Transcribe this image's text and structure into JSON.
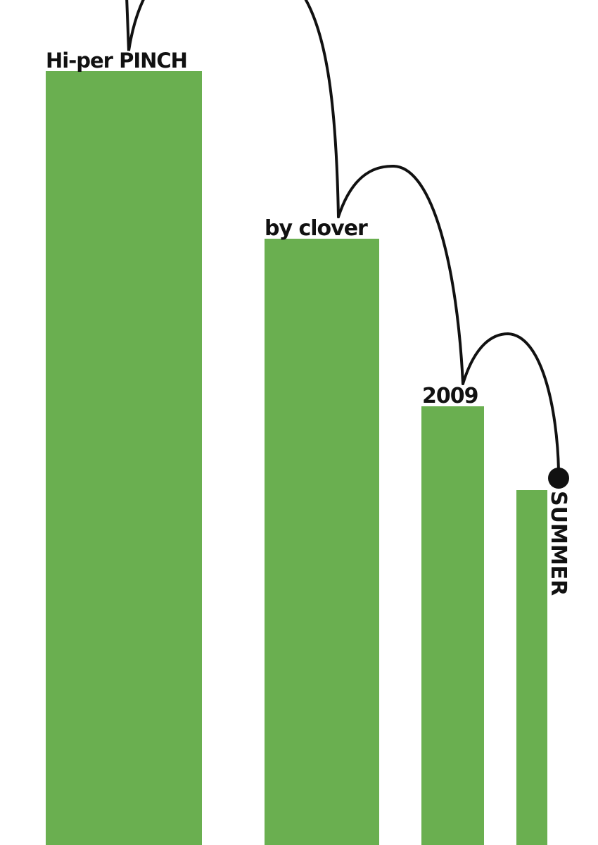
{
  "colors": {
    "bar": "#6aaf50",
    "line": "#111111",
    "background": "#ffffff"
  },
  "title": "Hi-per PINCH",
  "author": "by clover",
  "year": "2009",
  "season": "SUMMER"
}
